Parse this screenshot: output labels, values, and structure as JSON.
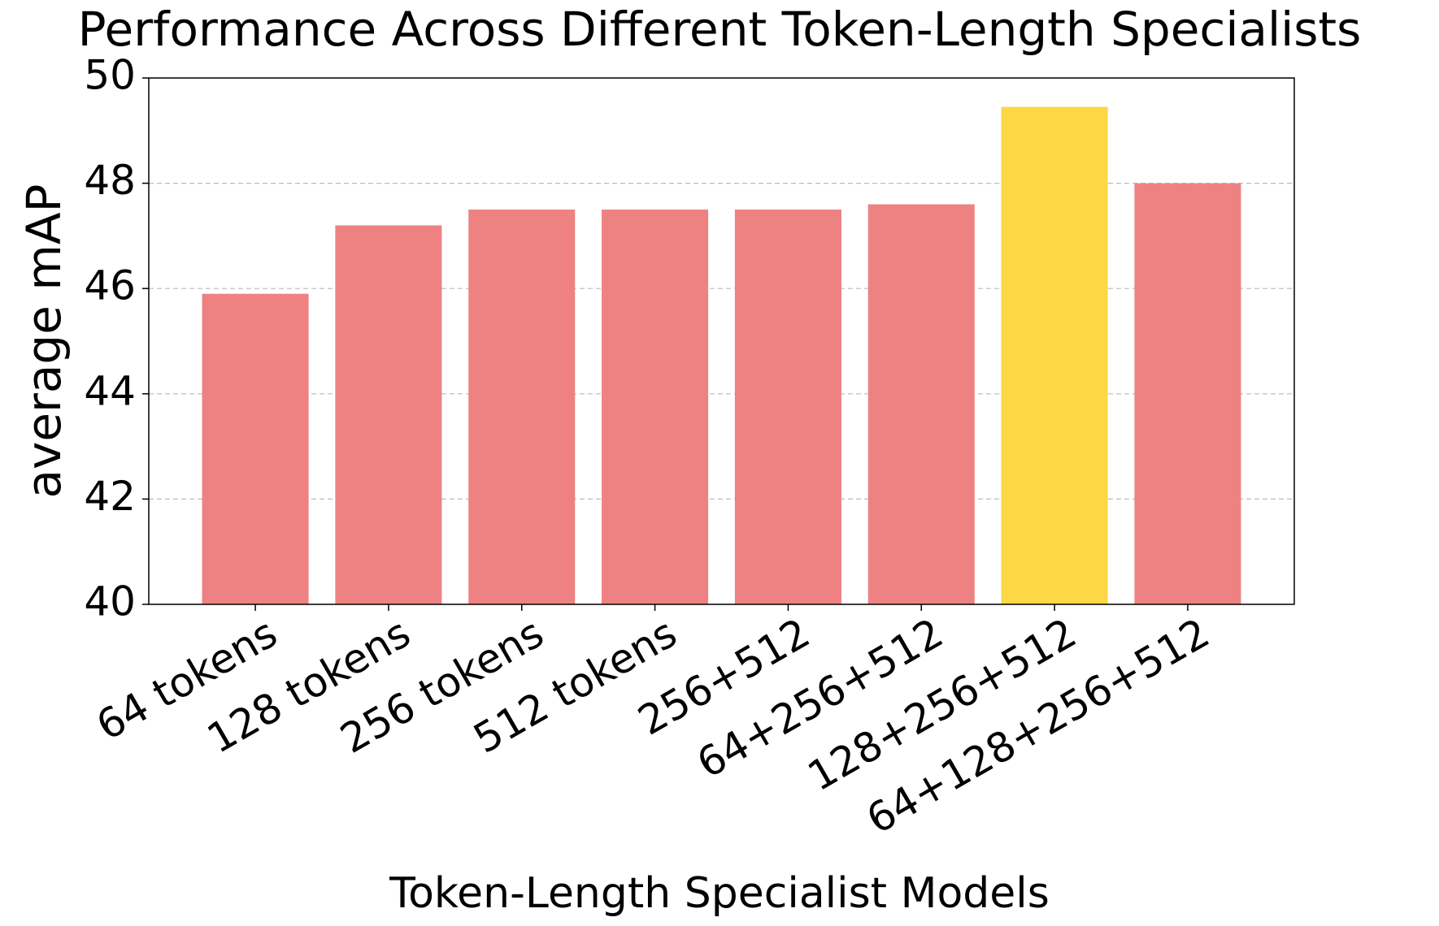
{
  "chart_data": {
    "type": "bar",
    "title": "Performance Across Different Token-Length Specialists",
    "x_label": "Token-Length Specialist Models",
    "y_label": "average mAP",
    "categories": [
      "64 tokens",
      "128 tokens",
      "256 tokens",
      "512 tokens",
      "256+512",
      "64+256+512",
      "128+256+512",
      "64+128+256+512"
    ],
    "values": [
      45.9,
      47.2,
      47.5,
      47.5,
      47.5,
      47.6,
      49.45,
      48.0
    ],
    "colors": [
      "#ee8282",
      "#ee8282",
      "#ee8282",
      "#ee8282",
      "#ee8282",
      "#ee8282",
      "#fdd744",
      "#ee8282"
    ],
    "ylim": [
      40,
      50
    ],
    "yticks": [
      40,
      42,
      44,
      46,
      48,
      50
    ],
    "grid": true
  }
}
